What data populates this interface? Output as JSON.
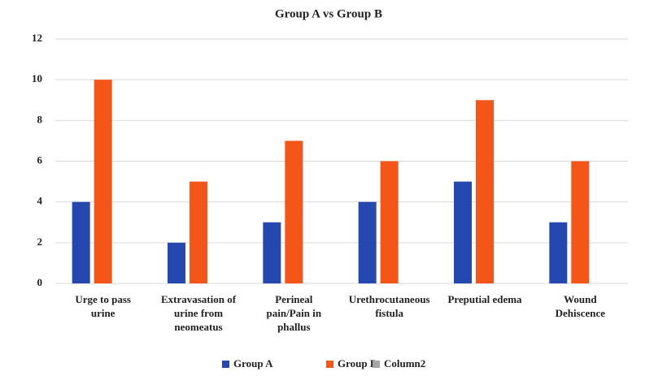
{
  "chart_data": {
    "type": "bar",
    "title": "Group A vs Group B",
    "categories": [
      "Urge to pass urine",
      "Extravasation of urine from neomeatus",
      "Perineal pain/Pain in phallus",
      "Urethrocutaneous fistula",
      "Preputial edema",
      "Wound Dehiscence"
    ],
    "series": [
      {
        "name": "Group A",
        "color": "#2447b0",
        "values": [
          4,
          2,
          3,
          4,
          5,
          3
        ]
      },
      {
        "name": "Group B",
        "color": "#f4561a",
        "values": [
          10,
          5,
          7,
          6,
          9,
          6
        ]
      },
      {
        "name": "Column2",
        "color": "#a5a5a5",
        "values": [
          null,
          null,
          null,
          null,
          null,
          null
        ]
      }
    ],
    "ylim": [
      0,
      12
    ],
    "yticks": [
      0,
      2,
      4,
      6,
      8,
      10,
      12
    ],
    "grid": true,
    "legend": "bottom"
  }
}
